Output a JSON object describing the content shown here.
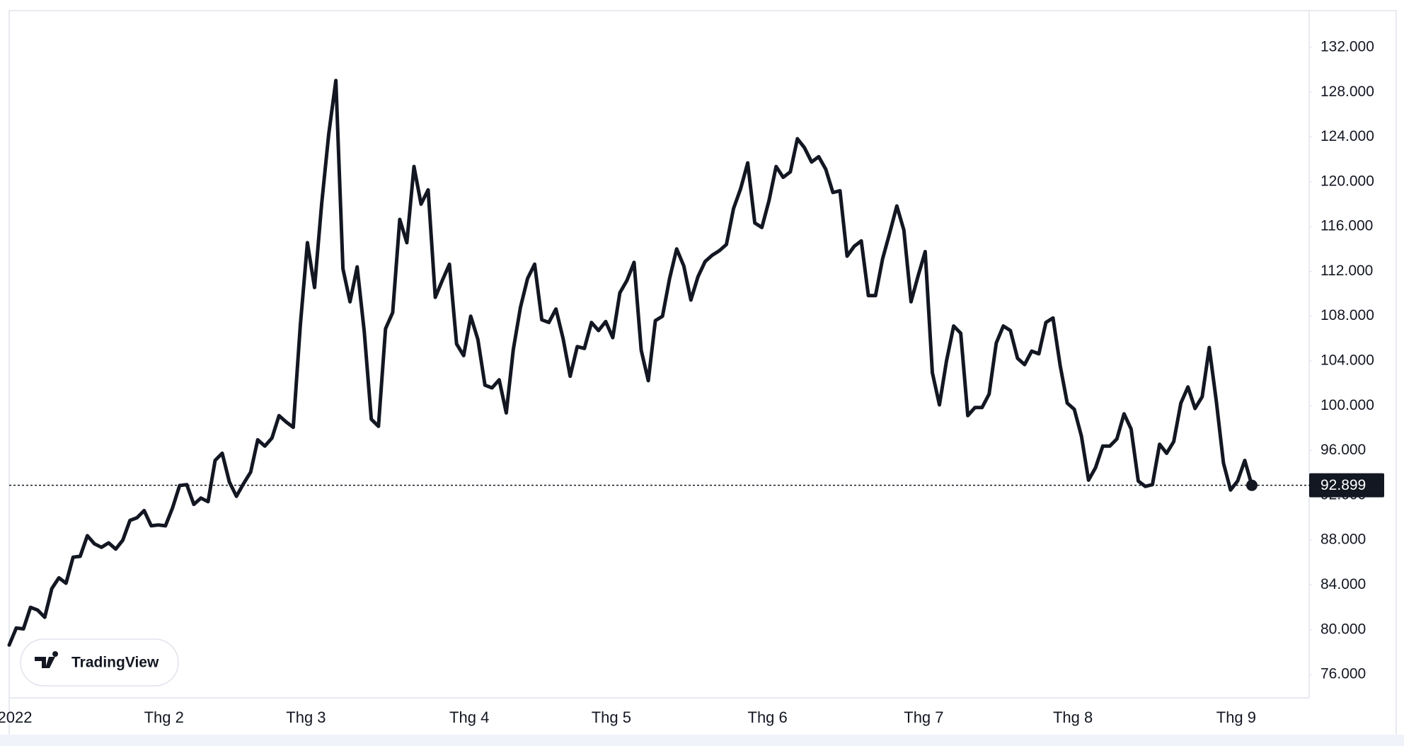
{
  "chart_data": {
    "type": "line",
    "categories": [
      "2022",
      null,
      null,
      null,
      null,
      null,
      null,
      null,
      null,
      null,
      null,
      null,
      null,
      null,
      null,
      null,
      null,
      null,
      null,
      null,
      null,
      "Thg 2",
      null,
      null,
      null,
      null,
      null,
      null,
      null,
      null,
      null,
      null,
      null,
      null,
      null,
      null,
      null,
      null,
      null,
      null,
      null,
      "Thg 3",
      null,
      null,
      null,
      null,
      null,
      null,
      null,
      null,
      null,
      null,
      null,
      null,
      null,
      null,
      null,
      null,
      null,
      null,
      null,
      null,
      null,
      null,
      "Thg 4",
      null,
      null,
      null,
      null,
      null,
      null,
      null,
      null,
      null,
      null,
      null,
      null,
      null,
      null,
      null,
      null,
      null,
      null,
      null,
      "Thg 5",
      null,
      null,
      null,
      null,
      null,
      null,
      null,
      null,
      null,
      null,
      null,
      null,
      null,
      null,
      null,
      null,
      null,
      null,
      null,
      null,
      null,
      "Thg 6",
      null,
      null,
      null,
      null,
      null,
      null,
      null,
      null,
      null,
      null,
      null,
      null,
      null,
      null,
      null,
      null,
      null,
      null,
      null,
      null,
      null,
      "Thg 7",
      null,
      null,
      null,
      null,
      null,
      null,
      null,
      null,
      null,
      null,
      null,
      null,
      null,
      null,
      null,
      null,
      null,
      null,
      null,
      null,
      "Thg 8",
      null,
      null,
      null,
      null,
      null,
      null,
      null,
      null,
      null,
      null,
      null,
      null,
      null,
      null,
      null,
      null,
      null,
      null,
      null,
      null,
      null,
      null,
      "Thg 9",
      null,
      null,
      null
    ],
    "values": [
      78640,
      80160,
      80080,
      82000,
      81760,
      81120,
      83680,
      84640,
      84160,
      86480,
      86560,
      88400,
      87680,
      87360,
      87760,
      87200,
      88000,
      89760,
      90000,
      90640,
      89280,
      89360,
      89280,
      90880,
      92880,
      92960,
      91200,
      91760,
      91440,
      95120,
      95760,
      93200,
      91920,
      93040,
      94080,
      96960,
      96400,
      97120,
      99120,
      98560,
      98080,
      107200,
      114560,
      110560,
      118000,
      124240,
      129040,
      112240,
      109280,
      112400,
      106640,
      98800,
      98160,
      106880,
      108320,
      116640,
      114560,
      121360,
      118000,
      119280,
      109680,
      111200,
      112640,
      105520,
      104480,
      108000,
      105920,
      101840,
      101600,
      102320,
      99360,
      105040,
      108800,
      111360,
      112640,
      107680,
      107440,
      108640,
      106000,
      102640,
      105280,
      105120,
      107440,
      106720,
      107520,
      106080,
      110080,
      111200,
      112800,
      104960,
      102240,
      107600,
      108000,
      111360,
      114000,
      112480,
      109440,
      111520,
      112880,
      113440,
      113840,
      114400,
      117600,
      119360,
      121680,
      116320,
      115920,
      118320,
      121360,
      120400,
      120880,
      123840,
      123040,
      121760,
      122240,
      121120,
      119040,
      119200,
      113360,
      114240,
      114720,
      109840,
      109840,
      113120,
      115440,
      117840,
      115680,
      109280,
      111600,
      113760,
      102960,
      100080,
      104000,
      107120,
      106480,
      99120,
      99840,
      99840,
      101040,
      105600,
      107120,
      106720,
      104240,
      103680,
      104880,
      104640,
      107440,
      107840,
      103600,
      100240,
      99680,
      97280,
      93360,
      94480,
      96400,
      96400,
      97040,
      99280,
      97920,
      93280,
      92800,
      92960,
      96560,
      95760,
      96800,
      100240,
      101680,
      99760,
      100800,
      105200,
      100400,
      94880,
      92480,
      93280,
      95120,
      92899
    ],
    "last_value_label": "92.899",
    "color": "#131722",
    "grid": false,
    "ylim": [
      73920,
      135280
    ],
    "yticks": [
      {
        "value": 76000,
        "label": "76.000"
      },
      {
        "value": 80000,
        "label": "80.000"
      },
      {
        "value": 84000,
        "label": "84.000"
      },
      {
        "value": 88000,
        "label": "88.000"
      },
      {
        "value": 92000,
        "label": "92.000"
      },
      {
        "value": 96000,
        "label": "96.000"
      },
      {
        "value": 100000,
        "label": "100.000"
      },
      {
        "value": 104000,
        "label": "104.000"
      },
      {
        "value": 108000,
        "label": "108.000"
      },
      {
        "value": 112000,
        "label": "112.000"
      },
      {
        "value": 116000,
        "label": "116.000"
      },
      {
        "value": 120000,
        "label": "120.000"
      },
      {
        "value": 124000,
        "label": "124.000"
      },
      {
        "value": 128000,
        "label": "128.000"
      },
      {
        "value": 132000,
        "label": "132.000"
      }
    ],
    "watermark": "TradingView"
  }
}
